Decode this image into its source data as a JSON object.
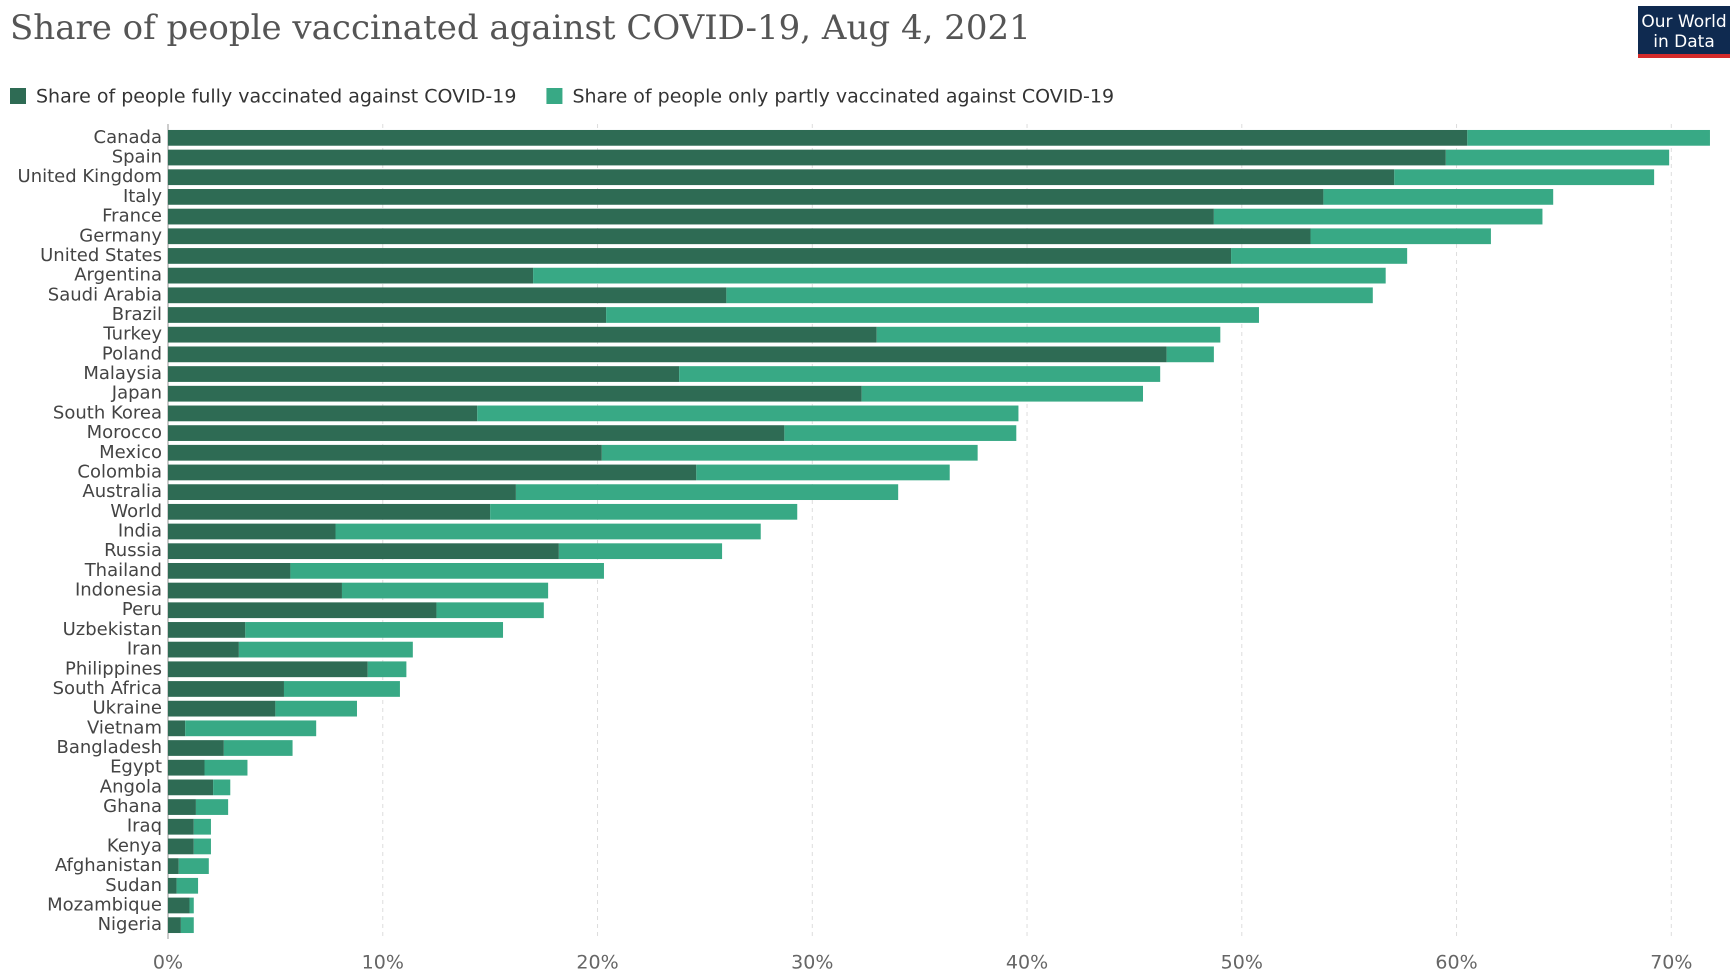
{
  "chart_data": {
    "type": "stacked-bar-horizontal",
    "title": "Share of people vaccinated against COVID-19, Aug 4, 2021",
    "logo": [
      "Our World",
      "in Data"
    ],
    "categories": [
      "Canada",
      "Spain",
      "United Kingdom",
      "Italy",
      "France",
      "Germany",
      "United States",
      "Argentina",
      "Saudi Arabia",
      "Brazil",
      "Turkey",
      "Poland",
      "Malaysia",
      "Japan",
      "South Korea",
      "Morocco",
      "Mexico",
      "Colombia",
      "Australia",
      "World",
      "India",
      "Russia",
      "Thailand",
      "Indonesia",
      "Peru",
      "Uzbekistan",
      "Iran",
      "Philippines",
      "South Africa",
      "Ukraine",
      "Vietnam",
      "Bangladesh",
      "Egypt",
      "Angola",
      "Ghana",
      "Iraq",
      "Kenya",
      "Afghanistan",
      "Sudan",
      "Mozambique",
      "Nigeria"
    ],
    "series": [
      {
        "name": "Share of people fully vaccinated against COVID-19",
        "color": "#2e6b54",
        "values": [
          60.5,
          59.5,
          57.1,
          53.8,
          48.7,
          53.2,
          49.5,
          17.0,
          26.0,
          20.4,
          33.0,
          46.5,
          23.8,
          32.3,
          14.4,
          28.7,
          20.2,
          24.6,
          16.2,
          15.0,
          7.8,
          18.2,
          5.7,
          8.1,
          12.5,
          3.6,
          3.3,
          9.3,
          5.4,
          5.0,
          0.8,
          2.6,
          1.7,
          2.1,
          1.3,
          1.2,
          1.2,
          0.5,
          0.4,
          1.0,
          0.6
        ]
      },
      {
        "name": "Share of people only partly vaccinated against COVID-19",
        "color": "#38a985",
        "values": [
          11.3,
          10.4,
          12.1,
          10.7,
          15.3,
          8.4,
          8.2,
          39.7,
          30.1,
          30.4,
          16.0,
          2.2,
          22.4,
          13.1,
          25.2,
          10.8,
          17.5,
          11.8,
          17.8,
          14.3,
          19.8,
          7.6,
          14.6,
          9.6,
          5.0,
          12.0,
          8.1,
          1.8,
          5.4,
          3.8,
          6.1,
          3.2,
          2.0,
          0.8,
          1.5,
          0.8,
          0.8,
          1.4,
          1.0,
          0.2,
          0.6
        ]
      }
    ],
    "xlim": [
      0,
      72.5
    ],
    "xticks": [
      {
        "value": 0,
        "label": "0%"
      },
      {
        "value": 10,
        "label": "10%"
      },
      {
        "value": 20,
        "label": "20%"
      },
      {
        "value": 30,
        "label": "30%"
      },
      {
        "value": 40,
        "label": "40%"
      },
      {
        "value": 50,
        "label": "50%"
      },
      {
        "value": 60,
        "label": "60%"
      },
      {
        "value": 70,
        "label": "70%"
      }
    ],
    "grid": true
  }
}
